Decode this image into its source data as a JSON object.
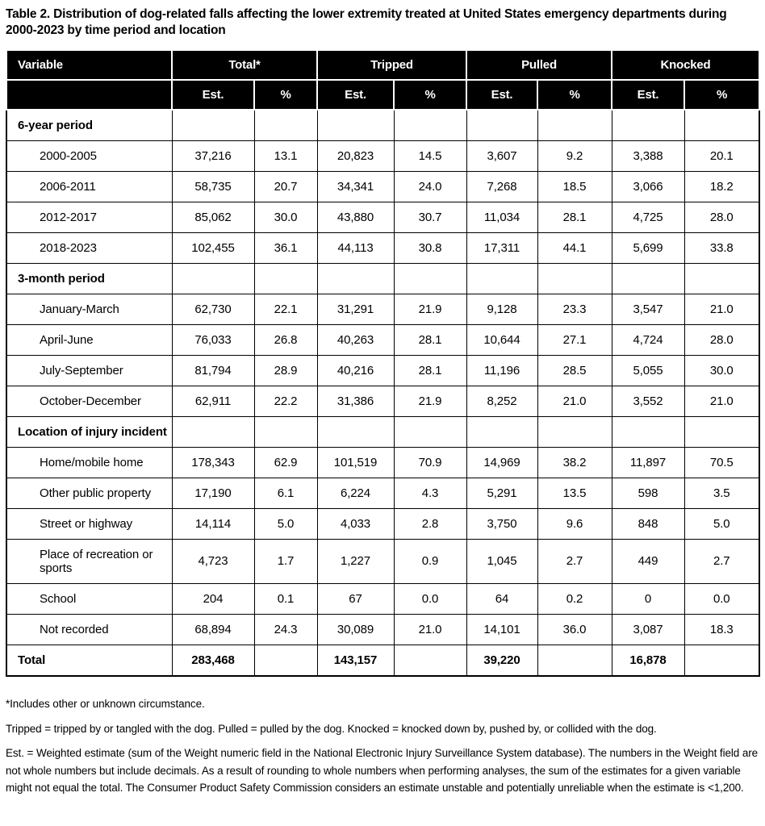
{
  "title": "Table 2. Distribution of dog-related falls affecting the lower extremity treated at United States emergency departments during 2000-2023 by time period and location",
  "table": {
    "header": {
      "variable": "Variable",
      "groups": [
        "Total*",
        "Tripped",
        "Pulled",
        "Knocked"
      ],
      "est": "Est.",
      "pct": "%"
    },
    "sections": [
      {
        "label": "6-year period",
        "rows": [
          {
            "label": "2000-2005",
            "values": [
              "37,216",
              "13.1",
              "20,823",
              "14.5",
              "3,607",
              "9.2",
              "3,388",
              "20.1"
            ]
          },
          {
            "label": "2006-2011",
            "values": [
              "58,735",
              "20.7",
              "34,341",
              "24.0",
              "7,268",
              "18.5",
              "3,066",
              "18.2"
            ]
          },
          {
            "label": "2012-2017",
            "values": [
              "85,062",
              "30.0",
              "43,880",
              "30.7",
              "11,034",
              "28.1",
              "4,725",
              "28.0"
            ]
          },
          {
            "label": "2018-2023",
            "values": [
              "102,455",
              "36.1",
              "44,113",
              "30.8",
              "17,311",
              "44.1",
              "5,699",
              "33.8"
            ]
          }
        ]
      },
      {
        "label": "3-month period",
        "rows": [
          {
            "label": "January-March",
            "values": [
              "62,730",
              "22.1",
              "31,291",
              "21.9",
              "9,128",
              "23.3",
              "3,547",
              "21.0"
            ]
          },
          {
            "label": "April-June",
            "values": [
              "76,033",
              "26.8",
              "40,263",
              "28.1",
              "10,644",
              "27.1",
              "4,724",
              "28.0"
            ]
          },
          {
            "label": "July-September",
            "values": [
              "81,794",
              "28.9",
              "40,216",
              "28.1",
              "11,196",
              "28.5",
              "5,055",
              "30.0"
            ]
          },
          {
            "label": "October-December",
            "values": [
              "62,911",
              "22.2",
              "31,386",
              "21.9",
              "8,252",
              "21.0",
              "3,552",
              "21.0"
            ]
          }
        ]
      },
      {
        "label": "Location of injury incident",
        "rows": [
          {
            "label": "Home/mobile home",
            "values": [
              "178,343",
              "62.9",
              "101,519",
              "70.9",
              "14,969",
              "38.2",
              "11,897",
              "70.5"
            ]
          },
          {
            "label": "Other public property",
            "values": [
              "17,190",
              "6.1",
              "6,224",
              "4.3",
              "5,291",
              "13.5",
              "598",
              "3.5"
            ]
          },
          {
            "label": "Street or highway",
            "values": [
              "14,114",
              "5.0",
              "4,033",
              "2.8",
              "3,750",
              "9.6",
              "848",
              "5.0"
            ]
          },
          {
            "label": "Place of recreation or sports",
            "values": [
              "4,723",
              "1.7",
              "1,227",
              "0.9",
              "1,045",
              "2.7",
              "449",
              "2.7"
            ]
          },
          {
            "label": "School",
            "values": [
              "204",
              "0.1",
              "67",
              "0.0",
              "64",
              "0.2",
              "0",
              "0.0"
            ]
          },
          {
            "label": "Not recorded",
            "values": [
              "68,894",
              "24.3",
              "30,089",
              "21.0",
              "14,101",
              "36.0",
              "3,087",
              "18.3"
            ]
          }
        ]
      }
    ],
    "total_row": {
      "label": "Total",
      "values": [
        "283,468",
        "",
        "143,157",
        "",
        "39,220",
        "",
        "16,878",
        ""
      ]
    }
  },
  "footnotes": [
    "*Includes other or unknown circumstance.",
    "Tripped = tripped by or tangled with the dog. Pulled = pulled by the dog. Knocked = knocked down by, pushed by, or collided with the dog.",
    "Est. = Weighted estimate (sum of the Weight numeric field in the National Electronic Injury Surveillance System database). The numbers in the Weight field are not whole numbers but include decimals. As a result of rounding to whole numbers when performing analyses, the sum of the estimates for a given variable might not equal the total. The Consumer Product Safety Commission considers an estimate unstable and potentially unreliable when the estimate is <1,200."
  ],
  "colors": {
    "header_bg": "#000000",
    "header_text": "#ffffff",
    "border": "#000000",
    "text": "#000000",
    "background": "#ffffff"
  }
}
